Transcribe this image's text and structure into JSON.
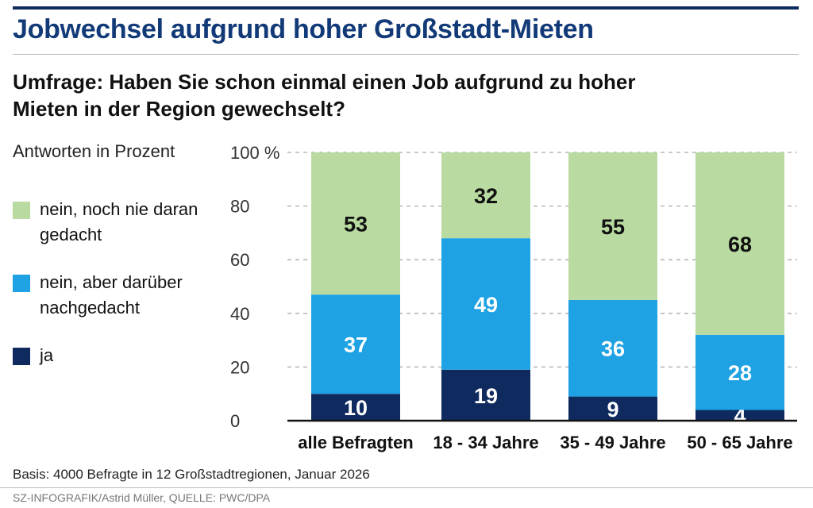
{
  "header": {
    "title": "Jobwechsel aufgrund hoher Großstadt-Mieten",
    "subtitle": "Umfrage: Haben Sie schon einmal einen Job aufgrund zu hoher Mieten in der Region gewechselt?"
  },
  "unit_label": "Antworten in Prozent",
  "legend": [
    {
      "label": "nein, noch nie daran gedacht",
      "color": "#b9dba1"
    },
    {
      "label": "nein, aber darüber nachgedacht",
      "color": "#1ea2e3"
    },
    {
      "label": "ja",
      "color": "#0e2a5e"
    }
  ],
  "footer": {
    "basis": "Basis: 4000 Befragte in 12 Großstadtregionen, Januar 2026",
    "credit": "SZ-INFOGRAFIK/Astrid Müller, QUELLE: PWC/DPA"
  },
  "chart_data": {
    "type": "bar",
    "stacked": true,
    "categories": [
      "alle Befragten",
      "18 - 34 Jahre",
      "35 - 49 Jahre",
      "50 - 65 Jahre"
    ],
    "series": [
      {
        "name": "ja",
        "values": [
          10,
          19,
          9,
          4
        ],
        "color": "#0e2a5e"
      },
      {
        "name": "nein, aber darüber nachgedacht",
        "values": [
          37,
          49,
          36,
          28
        ],
        "color": "#1ea2e3"
      },
      {
        "name": "nein, noch nie daran gedacht",
        "values": [
          53,
          32,
          55,
          68
        ],
        "color": "#b9dba1"
      }
    ],
    "ylim": [
      0,
      100
    ],
    "yticks": [
      "0",
      "20",
      "40",
      "60",
      "80",
      "100 %"
    ],
    "ytick_values": [
      0,
      20,
      40,
      60,
      80,
      100
    ],
    "grid": true,
    "legend_position": "left"
  }
}
